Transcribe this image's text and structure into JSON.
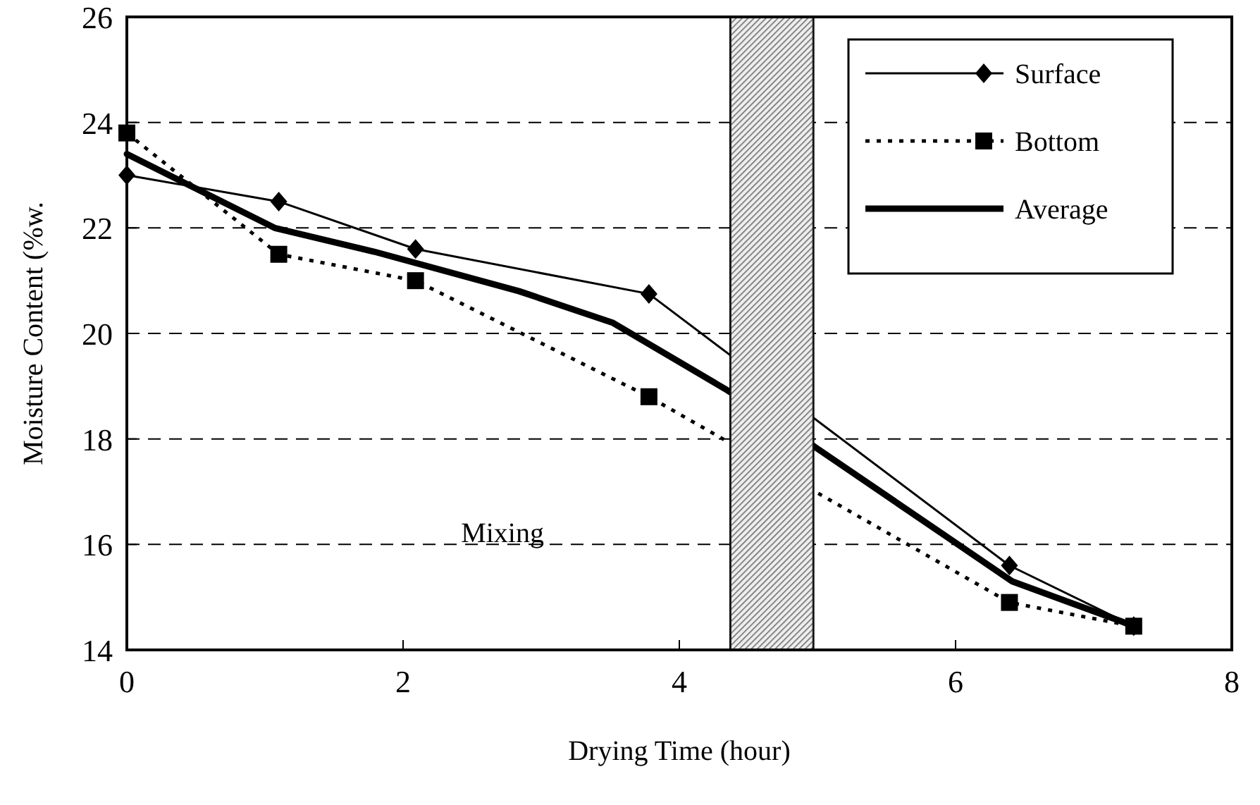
{
  "chart_data": {
    "type": "line",
    "xlabel": "Drying Time (hour)",
    "ylabel": "Moisture Content (%w.",
    "xlim": [
      0,
      8
    ],
    "xticks": [
      0,
      2,
      4,
      6,
      8
    ],
    "ylim": [
      14,
      26
    ],
    "yticks": [
      14,
      16,
      18,
      20,
      22,
      24,
      26
    ],
    "grid": "y",
    "legend": "top right",
    "series": [
      {
        "name": "Surface",
        "color": "#000000",
        "marker": "diamond",
        "line_style": "solid",
        "x": [
          0,
          1.1,
          2.09,
          3.78,
          6.39,
          7.29
        ],
        "values": [
          23.0,
          22.5,
          21.6,
          20.75,
          15.6,
          14.45
        ]
      },
      {
        "name": "Bottom",
        "color": "#000000",
        "marker": "square",
        "line_style": "dotted",
        "x": [
          0,
          1.1,
          2.09,
          3.78,
          6.39,
          7.29
        ],
        "values": [
          23.8,
          21.5,
          21.0,
          18.8,
          14.9,
          14.45
        ]
      },
      {
        "name": "Average",
        "color": "#000000",
        "marker": "none",
        "line_style": "solid",
        "x": [
          0,
          1.07,
          1.55,
          1.79,
          2.84,
          3.52,
          4.33,
          4.98,
          6.41,
          7.19,
          7.29
        ],
        "values": [
          23.4,
          22.0,
          21.7,
          21.55,
          20.8,
          20.2,
          18.95,
          17.85,
          15.3,
          14.55,
          14.45
        ]
      }
    ],
    "bands": [
      {
        "axis": "x",
        "from": 4.37,
        "to": 4.97,
        "color": "#bdbdbd"
      }
    ],
    "annotations": [
      "Mixing"
    ]
  }
}
